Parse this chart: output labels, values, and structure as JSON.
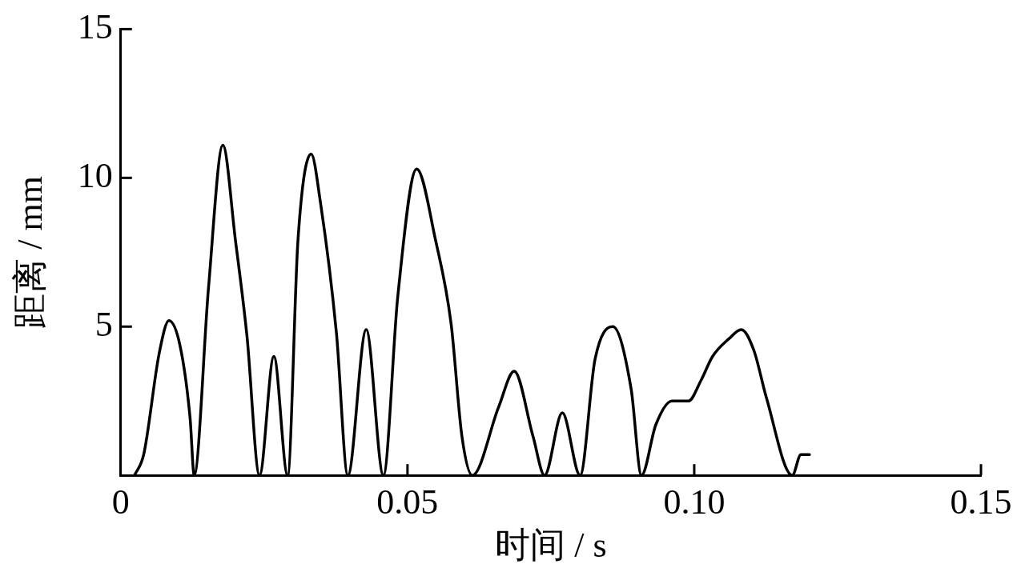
{
  "chart_data": {
    "type": "line",
    "xlabel": "时间 / s",
    "ylabel": "距离 / mm",
    "xlim": [
      0,
      0.15
    ],
    "ylim": [
      0,
      15
    ],
    "xticks": [
      0,
      {
        "value": 0.05,
        "label": "0.05"
      },
      {
        "value": 0.1,
        "label": "0.10"
      },
      {
        "value": 0.15,
        "label": "0.15"
      }
    ],
    "yticks": [
      {
        "value": 0,
        "label": null
      },
      5,
      10,
      15
    ],
    "grid": false,
    "legend": false,
    "marker": "none",
    "line_style": "solid",
    "series": [
      {
        "color": "#000000",
        "x": [
          0.0024,
          0.004,
          0.0067,
          0.0084,
          0.0104,
          0.0121,
          0.0128,
          0.0153,
          0.0178,
          0.02,
          0.022,
          0.0242,
          0.0267,
          0.0291,
          0.0309,
          0.0332,
          0.0348,
          0.0376,
          0.0396,
          0.0428,
          0.0458,
          0.0483,
          0.0516,
          0.0549,
          0.0576,
          0.0595,
          0.0613,
          0.0659,
          0.0686,
          0.0719,
          0.0739,
          0.077,
          0.0801,
          0.0827,
          0.0858,
          0.089,
          0.0908,
          0.0933,
          0.0961,
          0.099,
          0.1012,
          0.1032,
          0.1061,
          0.1082,
          0.1104,
          0.1126,
          0.1171,
          0.1186,
          0.1201
        ],
        "values": [
          0,
          0.7,
          4.1,
          5.2,
          4.3,
          1.9,
          0,
          6.3,
          11.1,
          7.9,
          4.7,
          0,
          4,
          0,
          7.9,
          10.8,
          9.2,
          4.8,
          0,
          4.9,
          0,
          6,
          10.3,
          7.9,
          5.1,
          1.3,
          0,
          2.3,
          3.5,
          1.3,
          0,
          2.1,
          0,
          3.9,
          5,
          2.9,
          0,
          1.7,
          2.5,
          2.5,
          3.2,
          4,
          4.6,
          4.9,
          4.2,
          2.6,
          0,
          0.7,
          0.7
        ]
      }
    ]
  }
}
